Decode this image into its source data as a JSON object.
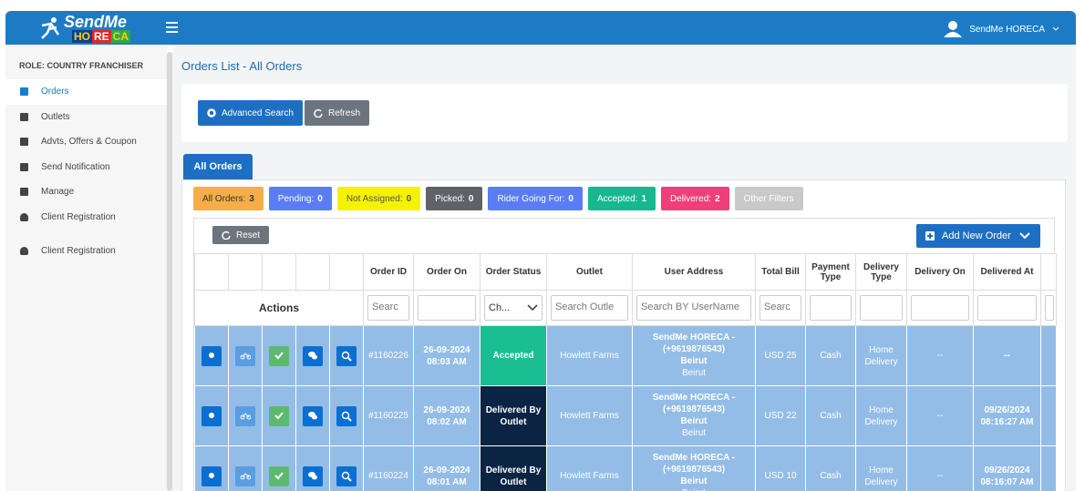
{
  "header": {
    "logo_top": "SendMe",
    "logo_bottom": [
      "HO",
      "RE",
      "CA"
    ],
    "user": "SendMe HORECA"
  },
  "sidebar": {
    "role": "ROLE: COUNTRY FRANCHISER",
    "menu": [
      "Orders",
      "Outlets",
      "Advts, Offers & Coupon",
      "Send Notification",
      "Manage",
      "Client Registration",
      "Client Registration"
    ]
  },
  "page_title": "Orders List - All Orders",
  "toolbar": {
    "advanced_search": "Advanced Search",
    "refresh": "Refresh"
  },
  "tab": "All Orders",
  "filters": [
    {
      "label": "All Orders:",
      "count": 3
    },
    {
      "label": "Pending:",
      "count": 0
    },
    {
      "label": "Not Assigned:",
      "count": 0
    },
    {
      "label": "Picked:",
      "count": 0
    },
    {
      "label": "Rider Going For:",
      "count": 0
    },
    {
      "label": "Accepted:",
      "count": 1
    },
    {
      "label": "Delivered:",
      "count": 2
    }
  ],
  "other_filters": "Other Filters",
  "table": {
    "reset": "Reset",
    "add_new": "Add New Order",
    "columns": [
      "Order ID",
      "Order On",
      "Order Status",
      "Outlet",
      "User Address",
      "Total Bill",
      "Payment Type",
      "Delivery Type",
      "Delivery On",
      "Delivered At"
    ],
    "actions_label": "Actions",
    "search": [
      "Searc",
      "",
      "Ch...",
      "Search Outle",
      "Search BY UserName",
      "Searc",
      "",
      "",
      "",
      ""
    ],
    "rows": [
      {
        "id": "#1160226",
        "date": "26-09-2024",
        "time": "08:03 AM",
        "status": "Accepted",
        "outlet": "Howlett Farms",
        "name": "SendMe HORECA -",
        "phone": "(+9619876543)",
        "city": "Beirut",
        "area": "Beirut",
        "bill": "USD 25",
        "payment": "Cash",
        "delivery": "Home Delivery",
        "delivery_on": "--",
        "delivered_date": "--",
        "delivered_time": ""
      },
      {
        "id": "#1160225",
        "date": "26-09-2024",
        "time": "08:02 AM",
        "status": "Delivered By Outlet",
        "outlet": "Howlett Farms",
        "name": "SendMe HORECA -",
        "phone": "(+9619876543)",
        "city": "Beirut",
        "area": "Beirut",
        "bill": "USD 22",
        "payment": "Cash",
        "delivery": "Home Delivery",
        "delivery_on": "--",
        "delivered_date": "09/26/2024",
        "delivered_time": "08:16:27 AM"
      },
      {
        "id": "#1160224",
        "date": "26-09-2024",
        "time": "08:01 AM",
        "status": "Delivered By Outlet",
        "outlet": "Howlett Farms",
        "name": "SendMe HORECA -",
        "phone": "(+9619876543)",
        "city": "Beirut",
        "area": "Beirut",
        "bill": "USD 10",
        "payment": "Cash",
        "delivery": "Home Delivery",
        "delivery_on": "--",
        "delivered_date": "09/26/2024",
        "delivered_time": "08:16:07 AM"
      }
    ]
  }
}
